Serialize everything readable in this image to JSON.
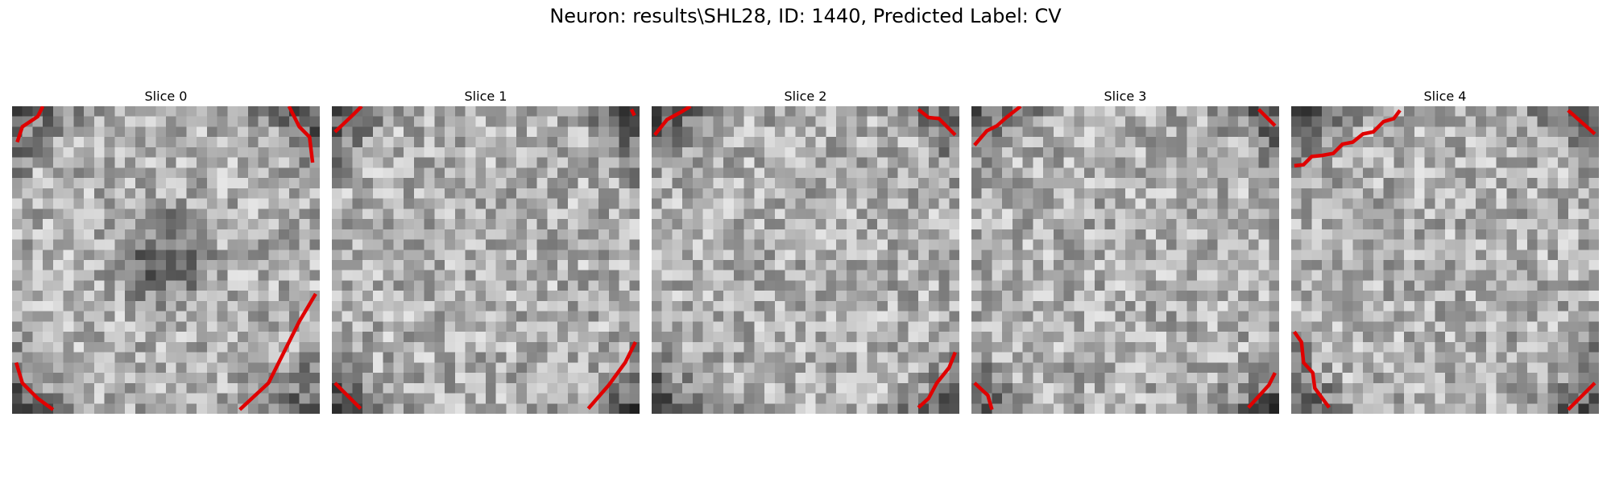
{
  "figure": {
    "title": "Neuron: results\\SHL28, ID: 1440, Predicted Label: CV",
    "grid_size": 30,
    "contour_color": "#e00000",
    "slices": [
      {
        "title": "Slice 0",
        "seed": 11,
        "dark_center": true
      },
      {
        "title": "Slice 1",
        "seed": 23,
        "dark_center": false
      },
      {
        "title": "Slice 2",
        "seed": 37,
        "dark_center": false
      },
      {
        "title": "Slice 3",
        "seed": 41,
        "dark_center": false
      },
      {
        "title": "Slice 4",
        "seed": 53,
        "dark_center": false
      }
    ]
  }
}
